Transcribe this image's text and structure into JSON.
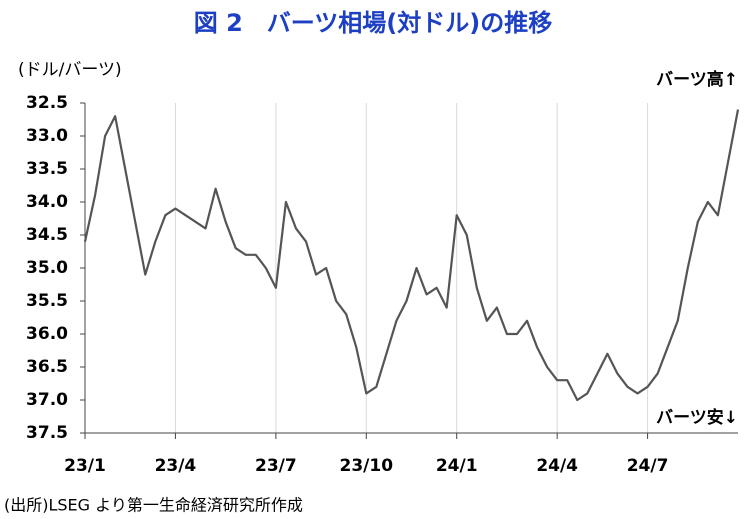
{
  "chart_data": {
    "type": "line",
    "title": "図 2　バーツ相場(対ドル)の推移",
    "y_axis_label": "(ドル/バーツ)",
    "annotations": [
      "バーツ高↑",
      "バーツ安↓"
    ],
    "source": "(出所)LSEG より第一生命経済研究所作成",
    "y_inverted": true,
    "grid": true,
    "categories": [
      "23/1",
      null,
      null,
      null,
      null,
      null,
      null,
      null,
      null,
      "23/4",
      null,
      null,
      null,
      null,
      null,
      null,
      null,
      null,
      null,
      "23/7",
      null,
      null,
      null,
      null,
      null,
      null,
      null,
      null,
      "23/10",
      null,
      null,
      null,
      null,
      null,
      null,
      null,
      null,
      "24/1",
      null,
      null,
      null,
      null,
      null,
      null,
      null,
      null,
      null,
      "24/4",
      null,
      null,
      null,
      null,
      null,
      null,
      null,
      null,
      "24/7",
      null,
      null,
      null,
      null,
      null,
      null,
      null,
      null,
      null
    ],
    "series": [
      {
        "color": "#555555",
        "values": [
          34.6,
          33.9,
          33.0,
          32.7,
          33.5,
          34.3,
          35.1,
          34.6,
          34.2,
          34.1,
          34.2,
          34.3,
          34.4,
          33.8,
          34.3,
          34.7,
          34.8,
          34.8,
          35.0,
          35.3,
          34.0,
          34.4,
          34.6,
          35.1,
          35.0,
          35.5,
          35.7,
          36.2,
          36.9,
          36.8,
          36.3,
          35.8,
          35.5,
          35.0,
          35.4,
          35.3,
          35.6,
          34.2,
          34.5,
          35.3,
          35.8,
          35.6,
          36.0,
          36.0,
          35.8,
          36.2,
          36.5,
          36.7,
          36.7,
          37.0,
          36.9,
          36.6,
          36.3,
          36.6,
          36.8,
          36.9,
          36.8,
          36.6,
          36.2,
          35.8,
          35.0,
          34.3,
          34.0,
          34.2,
          33.4,
          32.6
        ]
      }
    ],
    "ylim": [
      32.5,
      37.5
    ],
    "yticks": [
      32.5,
      {
        "value": 33,
        "label": "33.0"
      },
      33.5,
      {
        "value": 34,
        "label": "34.0"
      },
      34.5,
      {
        "value": 35,
        "label": "35.0"
      },
      35.5,
      {
        "value": 36,
        "label": "36.0"
      },
      36.5,
      {
        "value": 37,
        "label": "37.0"
      },
      37.5
    ]
  }
}
